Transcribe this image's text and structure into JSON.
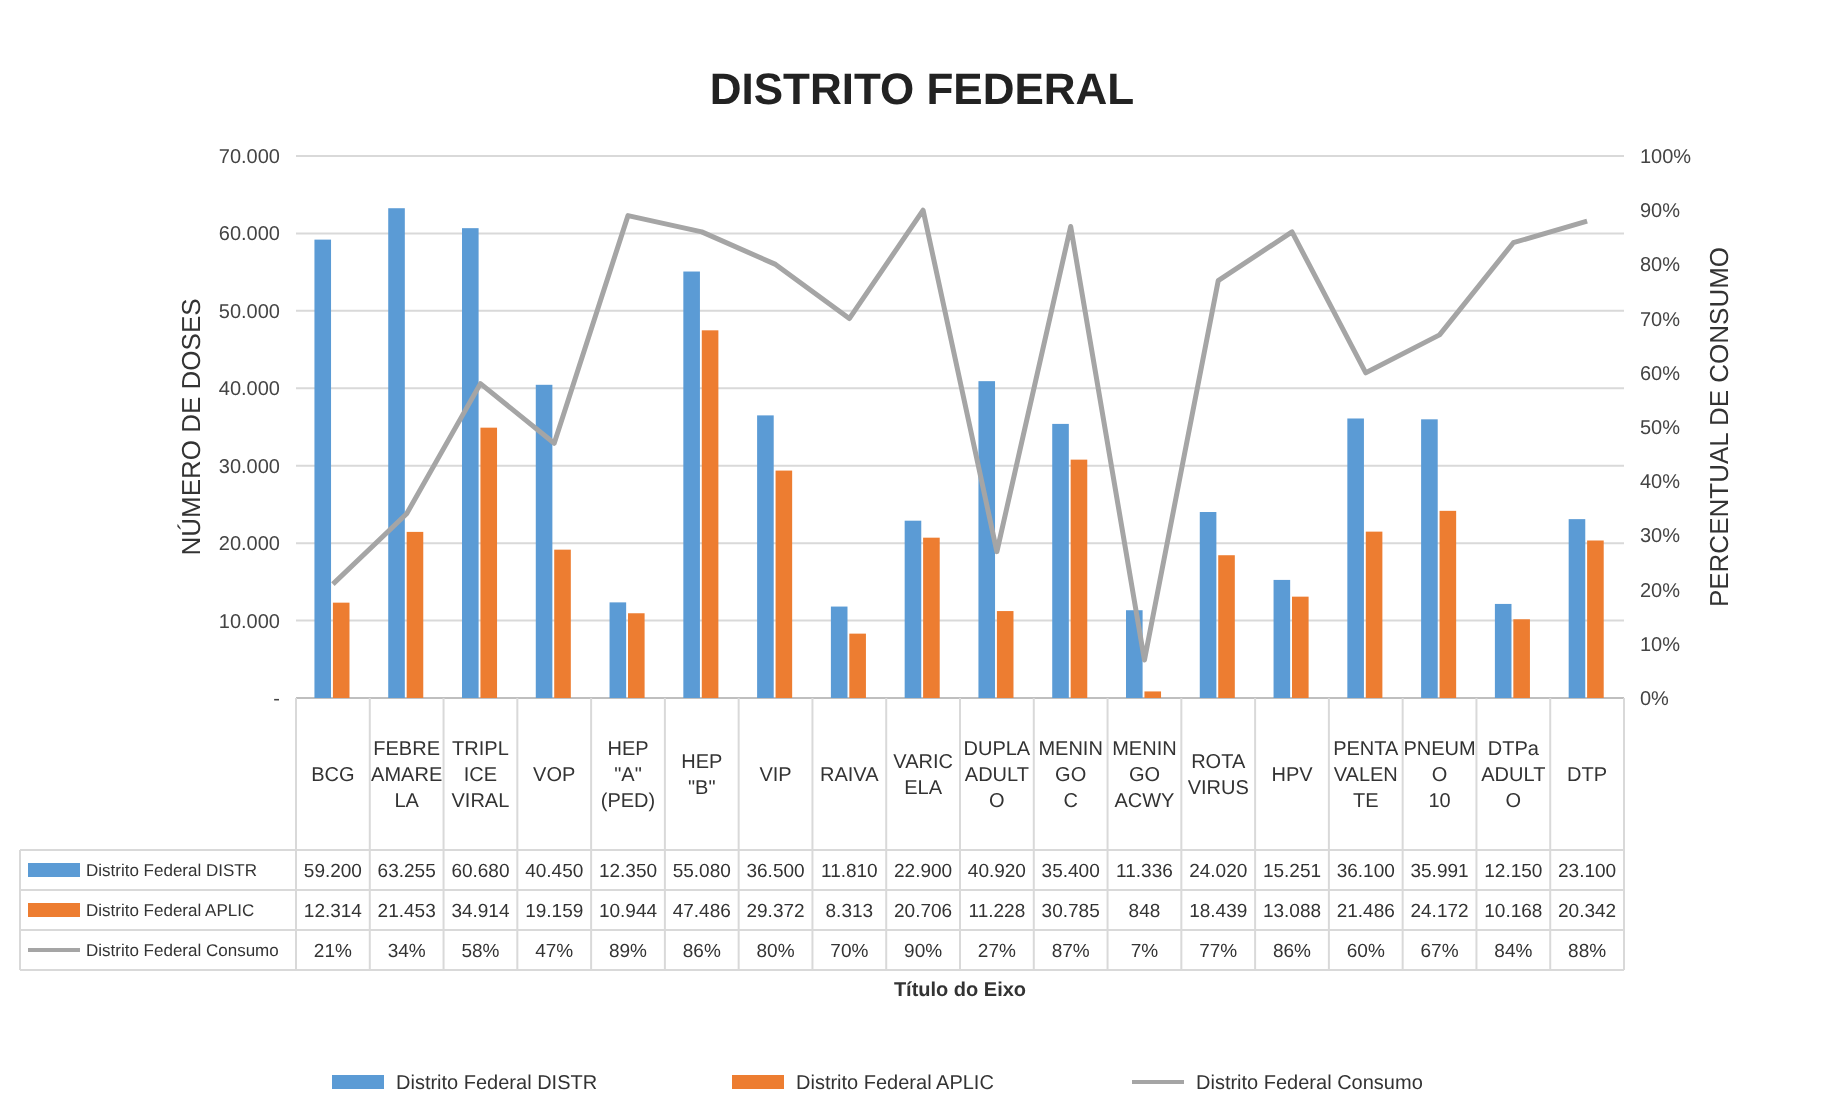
{
  "chart_data": {
    "type": "bar",
    "title": "DISTRITO FEDERAL",
    "annotations": [
      "Título do Eixo"
    ],
    "ylabel": "NÚMERO DE DOSES",
    "y2label": "PERCENTUAL DE CONSUMO",
    "categories": [
      "BCG",
      "FEBRE AMARELA",
      "TRIPLICE VIRAL",
      "VOP",
      "HEP \"A\" (PED)",
      "HEP \"B\"",
      "VIP",
      "RAIVA",
      "VARICELA",
      "DUPLA ADULTO",
      "MENINGO C",
      "MENINGO ACWY",
      "ROTA VIRUS",
      "HPV",
      "PENTAVALENTE",
      "PNEUMO 10",
      "DTPa ADULTO",
      "DTP"
    ],
    "series": [
      {
        "name": "Distrito Federal DISTR",
        "color": "#5b9bd5",
        "values": [
          59200,
          63255,
          60680,
          40450,
          12350,
          55080,
          36500,
          11810,
          22900,
          40920,
          35400,
          11336,
          24020,
          15251,
          36100,
          35991,
          12150,
          23100
        ],
        "value_labels": [
          "59.200",
          "63.255",
          "60.680",
          "40.450",
          "12.350",
          "55.080",
          "36.500",
          "11.810",
          "22.900",
          "40.920",
          "35.400",
          "11.336",
          "24.020",
          "15.251",
          "36.100",
          "35.991",
          "12.150",
          "23.100"
        ]
      },
      {
        "name": "Distrito Federal APLIC",
        "color": "#ed7d31",
        "values": [
          12314,
          21453,
          34914,
          19159,
          10944,
          47486,
          29372,
          8313,
          20706,
          11228,
          30785,
          848,
          18439,
          13088,
          21486,
          24172,
          10168,
          20342
        ],
        "value_labels": [
          "12.314",
          "21.453",
          "34.914",
          "19.159",
          "10.944",
          "47.486",
          "29.372",
          "8.313",
          "20.706",
          "11.228",
          "30.785",
          "848",
          "18.439",
          "13.088",
          "21.486",
          "24.172",
          "10.168",
          "20.342"
        ]
      },
      {
        "name": "Distrito Federal Consumo",
        "type": "line",
        "axis": "y2",
        "color": "#a5a5a5",
        "values": [
          21,
          34,
          58,
          47,
          89,
          86,
          80,
          70,
          90,
          27,
          87,
          7,
          77,
          86,
          60,
          67,
          84,
          88
        ],
        "value_labels": [
          "21%",
          "34%",
          "58%",
          "47%",
          "89%",
          "86%",
          "80%",
          "70%",
          "90%",
          "27%",
          "87%",
          "7%",
          "77%",
          "86%",
          "60%",
          "67%",
          "84%",
          "88%"
        ]
      }
    ],
    "ylim": [
      0,
      70000
    ],
    "yticks": [
      {
        "value": 0,
        "label": "-"
      },
      {
        "value": 10000,
        "label": "10.000"
      },
      {
        "value": 20000,
        "label": "20.000"
      },
      {
        "value": 30000,
        "label": "30.000"
      },
      {
        "value": 40000,
        "label": "40.000"
      },
      {
        "value": 50000,
        "label": "50.000"
      },
      {
        "value": 60000,
        "label": "60.000"
      },
      {
        "value": 70000,
        "label": "70.000"
      }
    ],
    "y2lim": [
      0,
      100
    ],
    "y2ticks": [
      {
        "value": 0,
        "label": "0%"
      },
      {
        "value": 10,
        "label": "10%"
      },
      {
        "value": 20,
        "label": "20%"
      },
      {
        "value": 30,
        "label": "30%"
      },
      {
        "value": 40,
        "label": "40%"
      },
      {
        "value": 50,
        "label": "50%"
      },
      {
        "value": 60,
        "label": "60%"
      },
      {
        "value": 70,
        "label": "70%"
      },
      {
        "value": 80,
        "label": "80%"
      },
      {
        "value": 90,
        "label": "90%"
      },
      {
        "value": 100,
        "label": "100%"
      }
    ],
    "grid": true,
    "legend": "bottom",
    "line_style": "solid",
    "marker": "none"
  }
}
